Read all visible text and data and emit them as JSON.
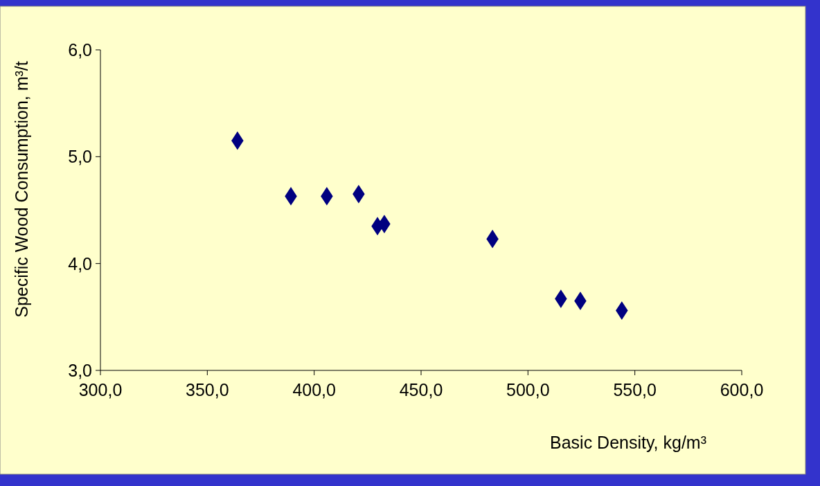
{
  "chart_data": {
    "type": "scatter",
    "xlabel": "Basic Density, kg/m³",
    "ylabel": "Specific Wood Consumption, m³/t",
    "x": [
      364.1,
      389.1,
      405.9,
      420.8,
      429.6,
      432.8,
      483.4,
      515.4,
      524.5,
      543.9
    ],
    "series": [
      {
        "color": "#000080",
        "values": [
          5.15,
          4.63,
          4.63,
          4.65,
          4.35,
          4.37,
          4.23,
          3.67,
          3.65,
          3.56
        ]
      }
    ],
    "xlim": [
      300,
      600
    ],
    "ylim": [
      3,
      6
    ],
    "xticks": [
      {
        "value": 300,
        "label": "300,0"
      },
      {
        "value": 350,
        "label": "350,0"
      },
      {
        "value": 400,
        "label": "400,0"
      },
      {
        "value": 450,
        "label": "450,0"
      },
      {
        "value": 500,
        "label": "500,0"
      },
      {
        "value": 550,
        "label": "550,0"
      },
      {
        "value": 600,
        "label": "600,0"
      }
    ],
    "yticks": [
      {
        "value": 3,
        "label": "3,0"
      },
      {
        "value": 4,
        "label": "4,0"
      },
      {
        "value": 5,
        "label": "5,0"
      },
      {
        "value": 6,
        "label": "6,0"
      }
    ],
    "marker": "diamond",
    "grid": false
  }
}
